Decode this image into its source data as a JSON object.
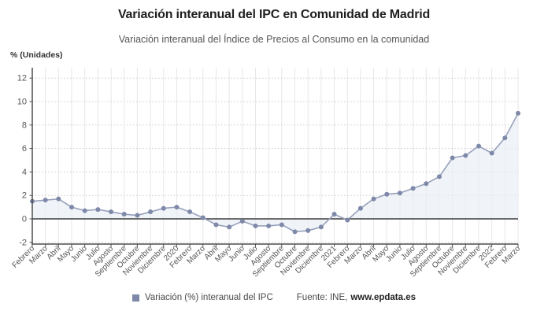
{
  "header": {
    "title": "Variación interanual del IPC en Comunidad de Madrid",
    "subtitle": "Variación interanual del Índice de Precios al Consumo en la comunidad"
  },
  "axis": {
    "unit_label": "% (Unidades)"
  },
  "legend": {
    "series_label": "Variación (%) interanual del IPC",
    "source_label": "Fuente: INE,",
    "source_site": "www.epdata.es"
  },
  "chart_data": {
    "type": "line",
    "title": "Variación interanual del IPC en Comunidad de Madrid",
    "subtitle": "Variación interanual del Índice de Precios al Consumo en la comunidad",
    "ylabel": "% (Unidades)",
    "xlabel": "",
    "categories": [
      "Febrero",
      "Marzo",
      "Abril",
      "Mayo",
      "Junio",
      "Julio",
      "Agosto",
      "Septiembre",
      "Octubre",
      "Noviembre",
      "Diciembre",
      "2020",
      "Febrero",
      "Marzo",
      "Abril",
      "Mayo",
      "Junio",
      "Julio",
      "Agosto",
      "Septiembre",
      "Octubre",
      "Noviembre",
      "Diciembre",
      "2021",
      "Febrero",
      "Marzo",
      "Abril",
      "Mayo",
      "Junio",
      "Julio",
      "Agosto",
      "Septiembre",
      "Octubre",
      "Noviembre",
      "Diciembre",
      "2022",
      "Febrero",
      "Marzo"
    ],
    "series": [
      {
        "name": "Variación (%) interanual del IPC",
        "values": [
          1.5,
          1.6,
          1.7,
          1.0,
          0.7,
          0.8,
          0.6,
          0.4,
          0.3,
          0.6,
          0.9,
          1.0,
          0.6,
          0.1,
          -0.5,
          -0.7,
          -0.2,
          -0.6,
          -0.6,
          -0.5,
          -1.1,
          -1.0,
          -0.7,
          0.4,
          -0.1,
          0.9,
          1.7,
          2.1,
          2.2,
          2.6,
          3.0,
          3.6,
          5.2,
          5.4,
          6.2,
          5.6,
          6.9,
          9.0
        ]
      }
    ],
    "ylim": [
      -2.2,
      12.9
    ],
    "yticks": [
      -2,
      0,
      2,
      4,
      6,
      8,
      10,
      12
    ],
    "grid": true,
    "legend_position": "bottom",
    "zero_baseline": true,
    "source": "Fuente: INE, www.epdata.es",
    "colors": {
      "line": "#97a1bb",
      "marker": "#7e89a9",
      "area": "#e9eef5",
      "h_grid": "#cccccc",
      "v_grid": "#e7e7e7",
      "axis": "#4d4d4d",
      "zero_line": "#3d3d3d",
      "label_text": "#555555"
    }
  }
}
